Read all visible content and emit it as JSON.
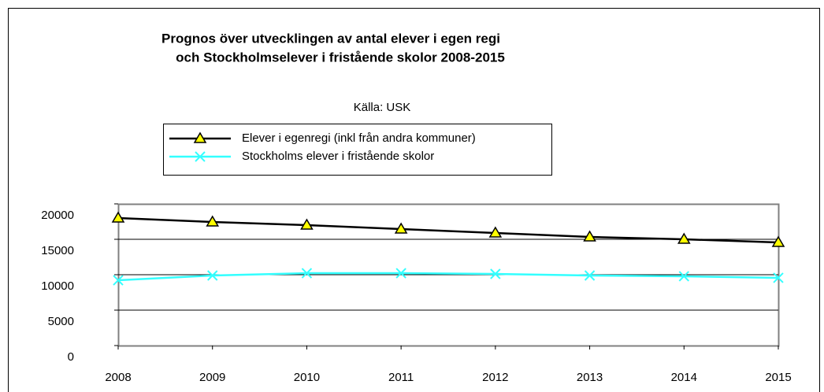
{
  "chart_data": {
    "type": "line",
    "title": [
      "Prognos över utvecklingen av antal elever i egen regi",
      "och Stockholmselever i fristående skolor 2008-2015"
    ],
    "subtitle": "Källa: USK",
    "categories": [
      "2008",
      "2009",
      "2010",
      "2011",
      "2012",
      "2013",
      "2014",
      "2015"
    ],
    "series": [
      {
        "name": "Elever i egenregi (inkl från andra kommuner)",
        "color": "#000000",
        "marker_color": "#ffff00",
        "marker": "triangle",
        "values": [
          18000,
          17440,
          17000,
          16440,
          15890,
          15330,
          15000,
          14560
        ]
      },
      {
        "name": "Stockholms elever i fristående skolor",
        "color": "#33ffff",
        "marker": "x",
        "values": [
          9220,
          9890,
          10220,
          10220,
          10110,
          9890,
          9780,
          9560
        ]
      }
    ],
    "ylim": [
      0,
      20000
    ],
    "yticks": [
      0,
      5000,
      10000,
      15000,
      20000
    ],
    "grid": true,
    "legend": "top"
  }
}
